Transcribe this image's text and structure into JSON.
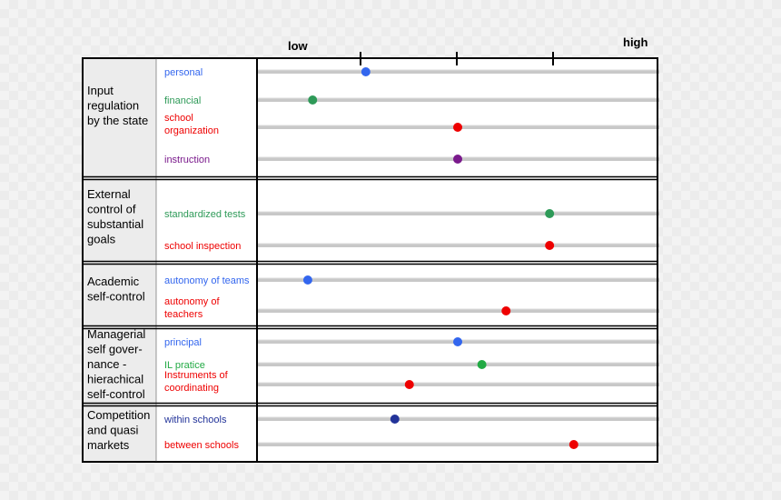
{
  "chart_data": {
    "type": "scatter",
    "scale_low_label": "low",
    "scale_high_label": "high",
    "xlim": [
      0,
      4
    ],
    "groups": [
      {
        "label_lines": [
          "Input",
          "regulation",
          "by the state"
        ],
        "items": [
          {
            "label_lines": [
              "personal"
            ],
            "color": "#3366ee",
            "value": 1.05
          },
          {
            "label_lines": [
              "financial"
            ],
            "color": "#2e9a58",
            "value": 0.5
          },
          {
            "label_lines": [
              "school",
              "organization"
            ],
            "color": "#ee0000",
            "value": 2.0
          },
          {
            "label_lines": [
              "instruction"
            ],
            "color": "#7a1a8c",
            "value": 2.0
          }
        ]
      },
      {
        "label_lines": [
          "External",
          "control of",
          "substantial",
          "goals"
        ],
        "items": [
          {
            "label_lines": [
              "standardized tests"
            ],
            "color": "#2e9a58",
            "value": 2.95
          },
          {
            "label_lines": [
              "school inspection"
            ],
            "color": "#ee0000",
            "value": 2.95
          }
        ]
      },
      {
        "label_lines": [
          "Academic",
          "self-control"
        ],
        "items": [
          {
            "label_lines": [
              "autonomy of teams"
            ],
            "color": "#3366ee",
            "value": 0.45
          },
          {
            "label_lines": [
              "autonomy of",
              "teachers"
            ],
            "color": "#ee0000",
            "value": 2.5
          }
        ]
      },
      {
        "label_lines": [
          "Managerial",
          "self gover-",
          "nance -",
          "hierachical",
          "self-control"
        ],
        "items": [
          {
            "label_lines": [
              "principal"
            ],
            "color": "#3366ee",
            "value": 2.0
          },
          {
            "label_lines": [
              "IL pratice"
            ],
            "color": "#22aa44",
            "value": 2.25
          },
          {
            "label_lines": [
              "Instruments of",
              "coordinating"
            ],
            "color": "#ee0000",
            "value": 1.5
          }
        ]
      },
      {
        "label_lines": [
          "Competition",
          "and quasi",
          "markets"
        ],
        "items": [
          {
            "label_lines": [
              "within schools"
            ],
            "color": "#223399",
            "value": 1.35
          },
          {
            "label_lines": [
              "between schools"
            ],
            "color": "#ee0000",
            "value": 3.2
          }
        ]
      }
    ]
  }
}
